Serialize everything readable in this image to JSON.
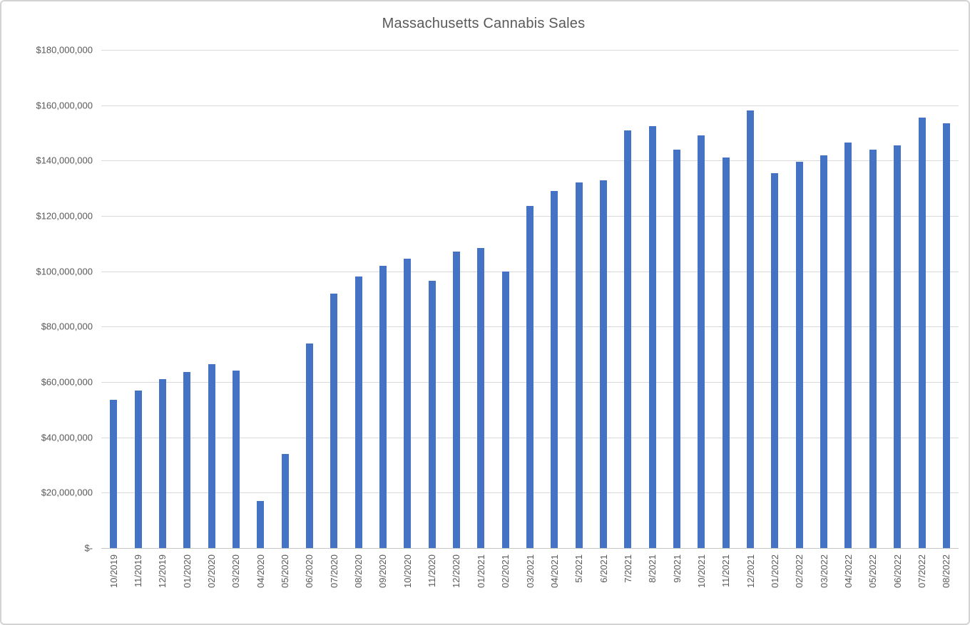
{
  "window": {
    "background": "#ffffff",
    "border_color": "#d3d3d3"
  },
  "chart_data": {
    "type": "bar",
    "title": "Massachusetts Cannabis Sales",
    "xlabel": "",
    "ylabel": "",
    "legend": "none",
    "grid": "horizontal",
    "bar_color": "#4472c4",
    "text_color": "#595959",
    "gridline_color": "#d9d9d9",
    "axis_line_color": "#c6c6c6",
    "ylim": [
      0,
      180000000
    ],
    "y_ticks": [
      {
        "label": "$180,000,000",
        "value": 180000000
      },
      {
        "label": "$160,000,000",
        "value": 160000000
      },
      {
        "label": "$140,000,000",
        "value": 140000000
      },
      {
        "label": "$120,000,000",
        "value": 120000000
      },
      {
        "label": "$100,000,000",
        "value": 100000000
      },
      {
        "label": "$80,000,000",
        "value": 80000000
      },
      {
        "label": "$60,000,000",
        "value": 60000000
      },
      {
        "label": "$40,000,000",
        "value": 40000000
      },
      {
        "label": "$20,000,000",
        "value": 20000000
      },
      {
        "label": "$-",
        "value": 0
      }
    ],
    "categories": [
      "10/2019",
      "11/2019",
      "12/2019",
      "01/2020",
      "02/2020",
      "03/2020",
      "04/2020",
      "05/2020",
      "06/2020",
      "07/2020",
      "08/2020",
      "09/2020",
      "10/2020",
      "11/2020",
      "12/2020",
      "01/2021",
      "02/2021",
      "03/2021",
      "04/2021",
      "5/2021",
      "6/2021",
      "7/2021",
      "8/2021",
      "9/2021",
      "10/2021",
      "11/2021",
      "12/2021",
      "01/2022",
      "02/2022",
      "03/2022",
      "04/2022",
      "05/2022",
      "06/2022",
      "07/2022",
      "08/2022"
    ],
    "values": [
      53500000,
      57000000,
      61000000,
      63500000,
      66500000,
      64000000,
      17000000,
      34000000,
      74000000,
      92000000,
      98000000,
      102000000,
      104500000,
      96500000,
      107000000,
      108500000,
      99800000,
      123500000,
      129000000,
      132000000,
      133000000,
      151000000,
      152500000,
      144000000,
      149000000,
      141000000,
      158000000,
      135500000,
      139500000,
      142000000,
      146500000,
      144000000,
      145500000,
      155500000,
      153500000
    ]
  }
}
